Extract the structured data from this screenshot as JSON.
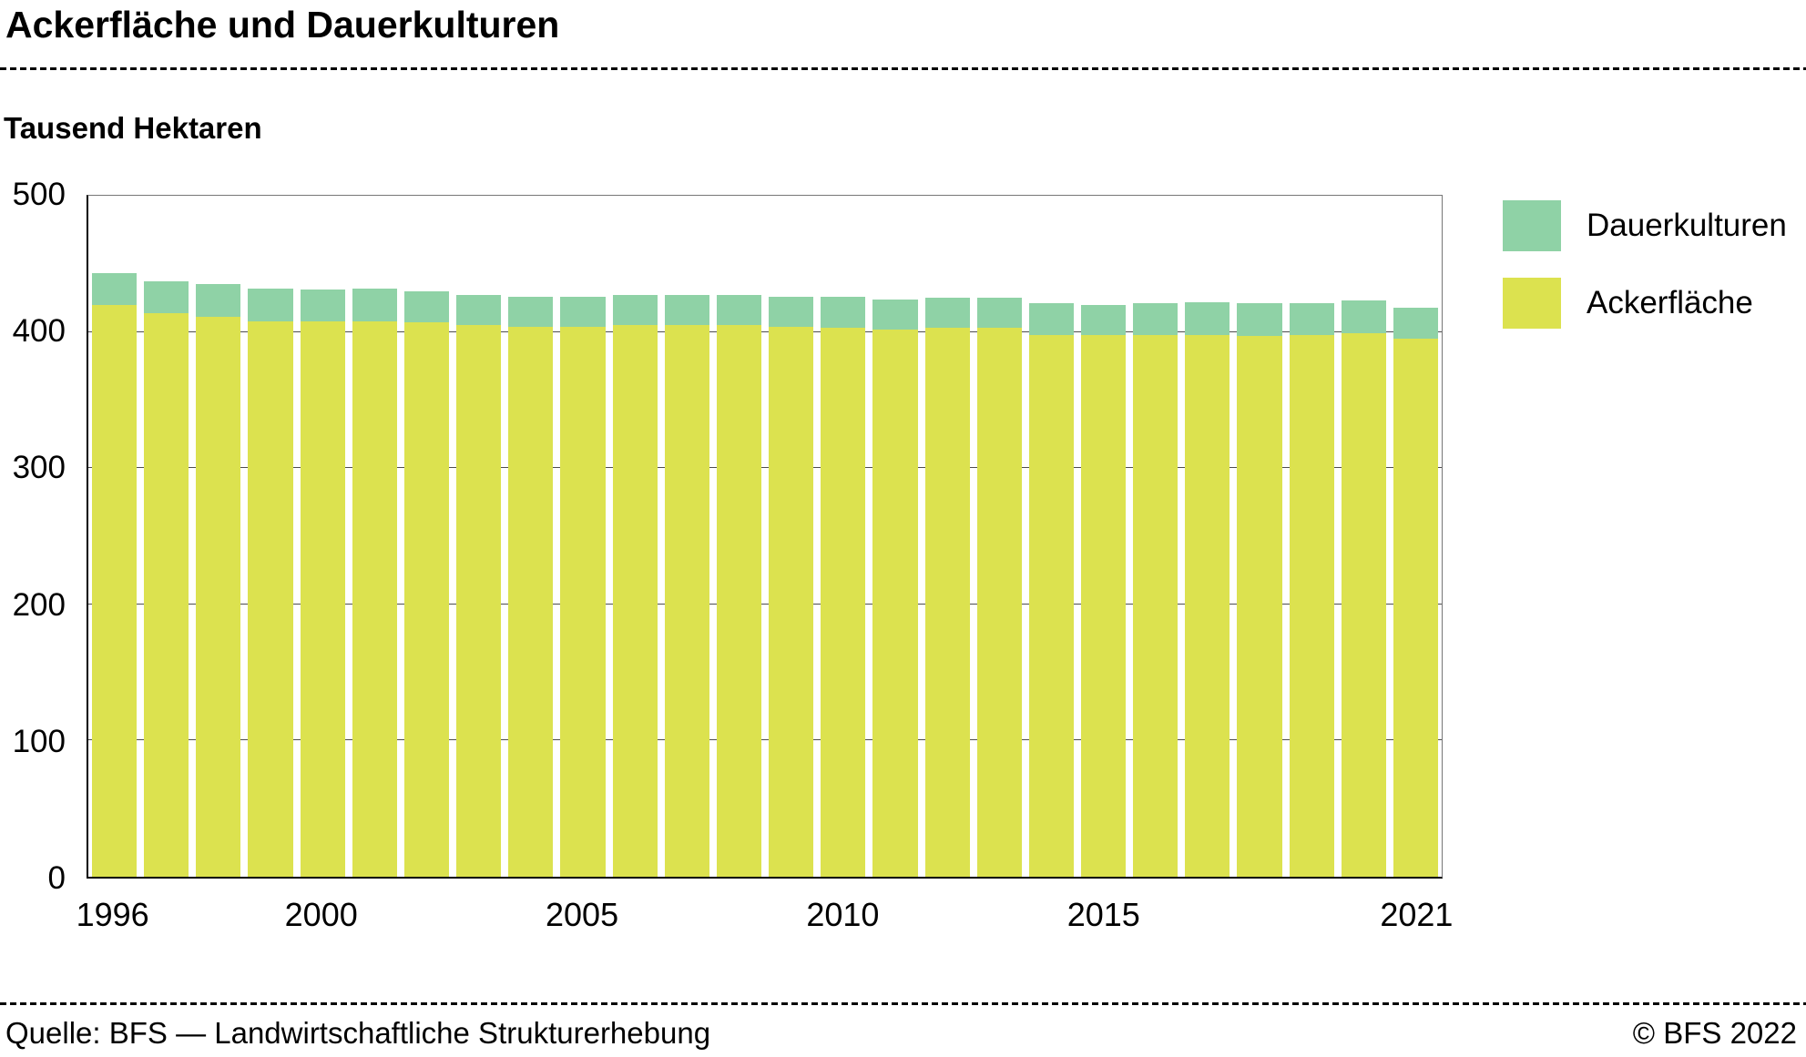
{
  "header": {
    "title": "Ackerfläche und Dauerkulturen",
    "subtitle": "Tausend Hektaren"
  },
  "legend": [
    {
      "label": "Dauerkulturen",
      "color": "#8fd2a6"
    },
    {
      "label": "Ackerfläche",
      "color": "#dce24f"
    }
  ],
  "footer": {
    "source": "Quelle: BFS — Landwirtschaftliche Strukturerhebung",
    "copyright": "© BFS 2022"
  },
  "chart_data": {
    "type": "bar",
    "stacked": true,
    "title": "Ackerfläche und Dauerkulturen",
    "ylabel": "Tausend Hektaren",
    "xlabel": "",
    "ylim": [
      0,
      500
    ],
    "yticks": [
      0,
      100,
      200,
      300,
      400,
      500
    ],
    "grid": true,
    "legend_position": "top-right",
    "x": [
      1996,
      1997,
      1998,
      1999,
      2000,
      2001,
      2002,
      2003,
      2004,
      2005,
      2006,
      2007,
      2008,
      2009,
      2010,
      2011,
      2012,
      2013,
      2014,
      2015,
      2016,
      2017,
      2018,
      2019,
      2020,
      2021
    ],
    "xticks_shown": [
      1996,
      2000,
      2005,
      2010,
      2015,
      2021
    ],
    "series": [
      {
        "name": "Ackerfläche",
        "color": "#dce24f",
        "values": [
          420,
          414,
          411,
          408,
          408,
          408,
          407,
          405,
          404,
          404,
          405,
          405,
          405,
          404,
          403,
          402,
          403,
          403,
          398,
          398,
          398,
          398,
          397,
          398,
          399,
          395
        ]
      },
      {
        "name": "Dauerkulturen",
        "color": "#8fd2a6",
        "values": [
          23,
          23,
          24,
          24,
          23,
          24,
          23,
          22,
          22,
          22,
          22,
          22,
          22,
          22,
          23,
          22,
          22,
          22,
          23,
          22,
          23,
          24,
          24,
          23,
          24,
          23
        ]
      }
    ]
  }
}
